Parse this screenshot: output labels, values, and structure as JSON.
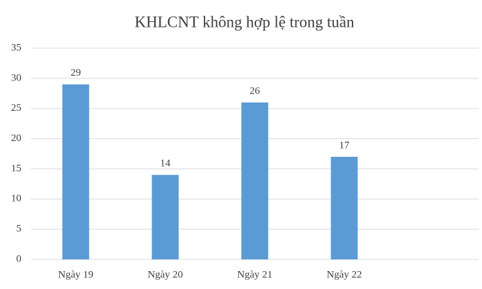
{
  "chart_data": {
    "type": "bar",
    "title": "KHLCNT không hợp lệ trong tuần",
    "categories": [
      "Ngày 19",
      "Ngày 20",
      "Ngày 21",
      "Ngày 22",
      null
    ],
    "values": [
      29,
      14,
      26,
      17,
      null
    ],
    "color": "#5b9bd5",
    "ylim": [
      0,
      35
    ],
    "yticks": [
      0,
      5,
      10,
      15,
      20,
      25,
      30,
      35
    ],
    "grid": true
  }
}
